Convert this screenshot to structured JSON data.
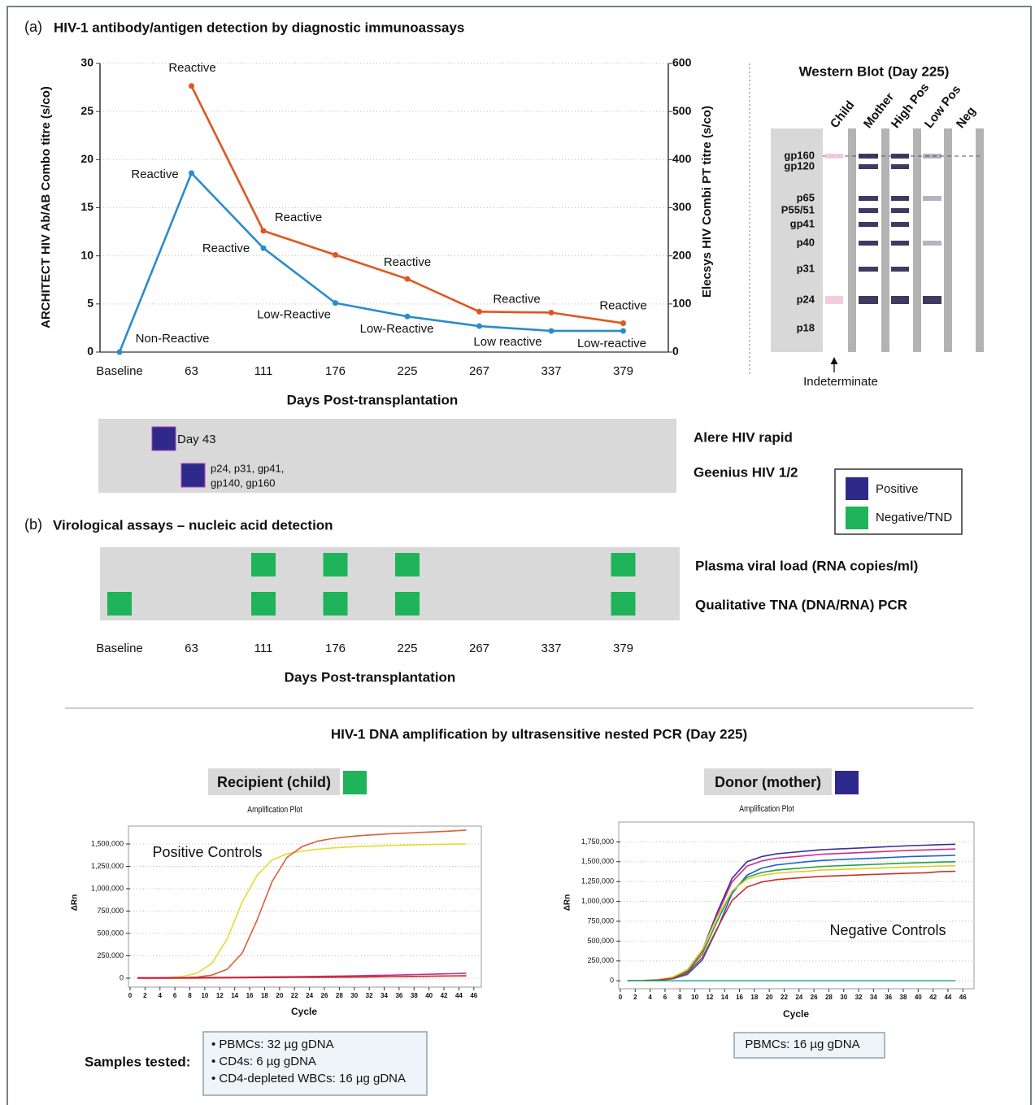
{
  "panel_a": {
    "label": "(a)",
    "title": "HIV-1 antibody/antigen detection by diagnostic immunoassays"
  },
  "panel_b": {
    "label": "(b)",
    "title": "Virological assays – nucleic acid detection"
  },
  "panel_c": {
    "title": "HIV-1 DNA amplification by ultrasensitive nested PCR (Day 225)"
  },
  "chart_data": [
    {
      "type": "line",
      "categories": [
        "Baseline",
        "63",
        "111",
        "176",
        "225",
        "267",
        "337",
        "379"
      ],
      "x_label": "Days Post-transplantation",
      "y_label": "ARCHITECT HIV Ab/AB Combo titre (s/co)",
      "y2_label": "Elecsys HIV Combi PT titre (s/co)",
      "ylim": [
        0,
        30
      ],
      "yticks": [
        0,
        5,
        10,
        15,
        20,
        25,
        30
      ],
      "y2lim": [
        0,
        600
      ],
      "y2ticks": [
        0,
        100,
        200,
        300,
        400,
        500,
        600
      ],
      "grid": true,
      "series": [
        {
          "color": "#2b8ccc",
          "values": [
            0,
            18.6,
            10.8,
            5.1,
            3.7,
            2.7,
            2.2,
            2.2
          ],
          "annotations": [
            "Non-Reactive",
            "Reactive",
            "Reactive",
            "Low-Reactive",
            "Low-Reactive",
            "Low reactive",
            null,
            "Low-reactive"
          ]
        },
        {
          "color": "#e0561e",
          "axis": "y2",
          "values": [
            null,
            553,
            252,
            202,
            152,
            84,
            82,
            60
          ],
          "annotations": [
            null,
            "Reactive",
            "Reactive",
            null,
            "Reactive",
            "Reactive",
            null,
            "Reactive"
          ]
        }
      ]
    },
    {
      "type": "line",
      "header": "Recipient (child)",
      "header_color": "#1fb35a",
      "title": "Amplification Plot",
      "x_label": "Cycle",
      "y_label": "ΔRn",
      "annotation": "Positive Controls",
      "xlim": [
        0,
        47
      ],
      "xticks": [
        0,
        2,
        4,
        6,
        8,
        10,
        12,
        14,
        16,
        18,
        20,
        22,
        24,
        26,
        28,
        30,
        32,
        34,
        36,
        38,
        40,
        42,
        44,
        46
      ],
      "ylim": [
        -100000,
        1700000
      ],
      "yticks": [
        0,
        {
          "value": 250000,
          "label": "250,000"
        },
        {
          "value": 500000,
          "label": "500,000"
        },
        {
          "value": 750000,
          "label": "750,000"
        },
        {
          "value": 1000000,
          "label": "1,000,000"
        },
        {
          "value": 1250000,
          "label": "1,250,000"
        },
        {
          "value": 1500000,
          "label": "1,500,000"
        }
      ],
      "grid": true,
      "x": [
        1,
        3,
        5,
        7,
        9,
        11,
        13,
        15,
        17,
        19,
        21,
        23,
        25,
        27,
        29,
        31,
        33,
        35,
        37,
        39,
        41,
        43,
        45
      ],
      "series": [
        {
          "color": "#e4dc2c",
          "values": [
            0,
            2000,
            6000,
            18000,
            57000,
            170000,
            440000,
            850000,
            1150000,
            1320000,
            1390000,
            1420000,
            1440000,
            1455000,
            1465000,
            1472000,
            1478000,
            1483000,
            1488000,
            1492000,
            1495000,
            1498000,
            1500000
          ]
        },
        {
          "color": "#d9603a",
          "values": [
            0,
            1000,
            2000,
            5000,
            12000,
            35000,
            100000,
            280000,
            650000,
            1080000,
            1350000,
            1470000,
            1530000,
            1560000,
            1580000,
            1595000,
            1605000,
            1615000,
            1622000,
            1630000,
            1637000,
            1645000,
            1655000
          ]
        },
        {
          "color": "#c03090",
          "values": [
            5000,
            5000,
            6000,
            6000,
            7000,
            8000,
            9000,
            10000,
            12000,
            14000,
            16000,
            18000,
            20000,
            22000,
            25000,
            28000,
            31000,
            34000,
            38000,
            42000,
            46000,
            50000,
            55000
          ]
        },
        {
          "color": "#d02020",
          "values": [
            0,
            0,
            1000,
            1000,
            2000,
            3000,
            4000,
            5000,
            6000,
            7000,
            8000,
            9000,
            10000,
            11000,
            12000,
            13000,
            15000,
            17000,
            19000,
            21000,
            23000,
            25000,
            27000
          ]
        }
      ]
    },
    {
      "type": "line",
      "header": "Donor (mother)",
      "header_color": "#2e2a8c",
      "title": "Amplification Plot",
      "x_label": "Cycle",
      "y_label": "ΔRn",
      "annotation": "Negative Controls",
      "xlim": [
        0,
        47.5
      ],
      "xticks": [
        0,
        2,
        4,
        6,
        8,
        10,
        12,
        14,
        16,
        18,
        20,
        22,
        24,
        26,
        28,
        30,
        32,
        34,
        36,
        38,
        40,
        42,
        44,
        46
      ],
      "ylim": [
        -100000,
        2000000
      ],
      "yticks": [
        0,
        {
          "value": 250000,
          "label": "250,000"
        },
        {
          "value": 500000,
          "label": "500,000"
        },
        {
          "value": 750000,
          "label": "750,000"
        },
        {
          "value": 1000000,
          "label": "1,000,000"
        },
        {
          "value": 1250000,
          "label": "1,250,000"
        },
        {
          "value": 1500000,
          "label": "1,500,000"
        },
        {
          "value": 1750000,
          "label": "1,750,000"
        }
      ],
      "grid": true,
      "x": [
        1,
        3,
        5,
        7,
        9,
        11,
        13,
        15,
        17,
        19,
        21,
        23,
        25,
        27,
        29,
        31,
        33,
        35,
        37,
        39,
        41,
        43,
        45
      ],
      "series": [
        {
          "color": "#3a2f9a",
          "values": [
            2000,
            3000,
            12000,
            40000,
            130000,
            380000,
            860000,
            1290000,
            1500000,
            1565000,
            1600000,
            1617000,
            1634000,
            1651000,
            1660000,
            1668000,
            1677000,
            1686000,
            1694000,
            1703000,
            1708000,
            1715000,
            1720000
          ]
        },
        {
          "color": "#1f5fd0",
          "values": [
            1000,
            2000,
            8000,
            25000,
            80000,
            260000,
            650000,
            1100000,
            1330000,
            1420000,
            1460000,
            1480000,
            1500000,
            1515000,
            1525000,
            1533000,
            1541000,
            1549000,
            1557000,
            1565000,
            1570000,
            1576000,
            1580000
          ]
        },
        {
          "color": "#d02a8a",
          "values": [
            1000,
            3000,
            11000,
            38000,
            126000,
            370000,
            830000,
            1245000,
            1444000,
            1510000,
            1544000,
            1560000,
            1577000,
            1594000,
            1602000,
            1610000,
            1619000,
            1627000,
            1635000,
            1643000,
            1648000,
            1655000,
            1660000
          ]
        },
        {
          "color": "#22a04a",
          "values": [
            1000,
            3000,
            10000,
            35000,
            114000,
            335000,
            750000,
            1125000,
            1305000,
            1365000,
            1395000,
            1410000,
            1425000,
            1440000,
            1448000,
            1455000,
            1463000,
            1470000,
            1478000,
            1485000,
            1490000,
            1496000,
            1500000
          ]
        },
        {
          "color": "#d9d020",
          "values": [
            2000,
            4000,
            14000,
            45000,
            140000,
            390000,
            800000,
            1130000,
            1280000,
            1330000,
            1355000,
            1370000,
            1380000,
            1395000,
            1400000,
            1408000,
            1414000,
            1421000,
            1428000,
            1435000,
            1440000,
            1445000,
            1450000
          ]
        },
        {
          "color": "#c8302a",
          "values": [
            1000,
            2000,
            9000,
            30000,
            100000,
            290000,
            660000,
            1010000,
            1180000,
            1245000,
            1275000,
            1290000,
            1303000,
            1316000,
            1322000,
            1330000,
            1337000,
            1343000,
            1350000,
            1356000,
            1360000,
            1375000,
            1380000
          ]
        },
        {
          "color": "#18a8a0",
          "values": [
            0,
            0,
            0,
            0,
            0,
            0,
            0,
            0,
            0,
            0,
            0,
            0,
            0,
            0,
            0,
            0,
            0,
            0,
            0,
            0,
            0,
            0,
            0
          ]
        }
      ]
    }
  ],
  "western_blot": {
    "title": "Western Blot (Day 225)",
    "lanes": [
      {
        "name": "Child",
        "color": "#c0309a"
      },
      {
        "name": "Mother",
        "color": "#c0309a"
      },
      {
        "name": "High Pos",
        "color": "#111111"
      },
      {
        "name": "Low Pos",
        "color": "#111111"
      },
      {
        "name": "Neg",
        "color": "#111111"
      }
    ],
    "bands": [
      {
        "name": "gp160",
        "color": "#111111"
      },
      {
        "name": "gp120",
        "color": "#111111"
      },
      {
        "name": "p65",
        "color": "#c0309a"
      },
      {
        "name": "P55/51",
        "color": "#c0309a"
      },
      {
        "name": "gp41",
        "color": "#111111"
      },
      {
        "name": "p40",
        "color": "#c0309a"
      },
      {
        "name": "p31",
        "color": "#111111"
      },
      {
        "name": "p24",
        "color": "#c0309a"
      },
      {
        "name": "p18",
        "color": "#111111"
      }
    ],
    "note": "Indeterminate"
  },
  "serology": [
    {
      "name": "Alere HIV rapid",
      "result": [
        "Day 43"
      ]
    },
    {
      "name": "Geenius HIV 1/2",
      "result": [
        "p24, p31, gp41,",
        "gp140, gp160"
      ]
    }
  ],
  "legend": [
    {
      "name": "Positive",
      "color": "#2e2a8c"
    },
    {
      "name": "Negative/TND",
      "color": "#1fb35a"
    }
  ],
  "virology": [
    {
      "name": "Plasma viral load (RNA copies/ml)",
      "negative_at": [
        "111",
        "176",
        "225",
        "379"
      ]
    },
    {
      "name": "Qualitative TNA (DNA/RNA) PCR",
      "negative_at": [
        "Baseline",
        "111",
        "176",
        "225",
        "379"
      ]
    }
  ],
  "samples": {
    "label": "Samples tested:",
    "recipient": [
      "• PBMCs: 32 µg gDNA",
      "• CD4s: 6 µg gDNA",
      "• CD4-depleted WBCs: 16 µg gDNA"
    ],
    "donor": [
      "PBMCs: 16 µg gDNA"
    ]
  }
}
